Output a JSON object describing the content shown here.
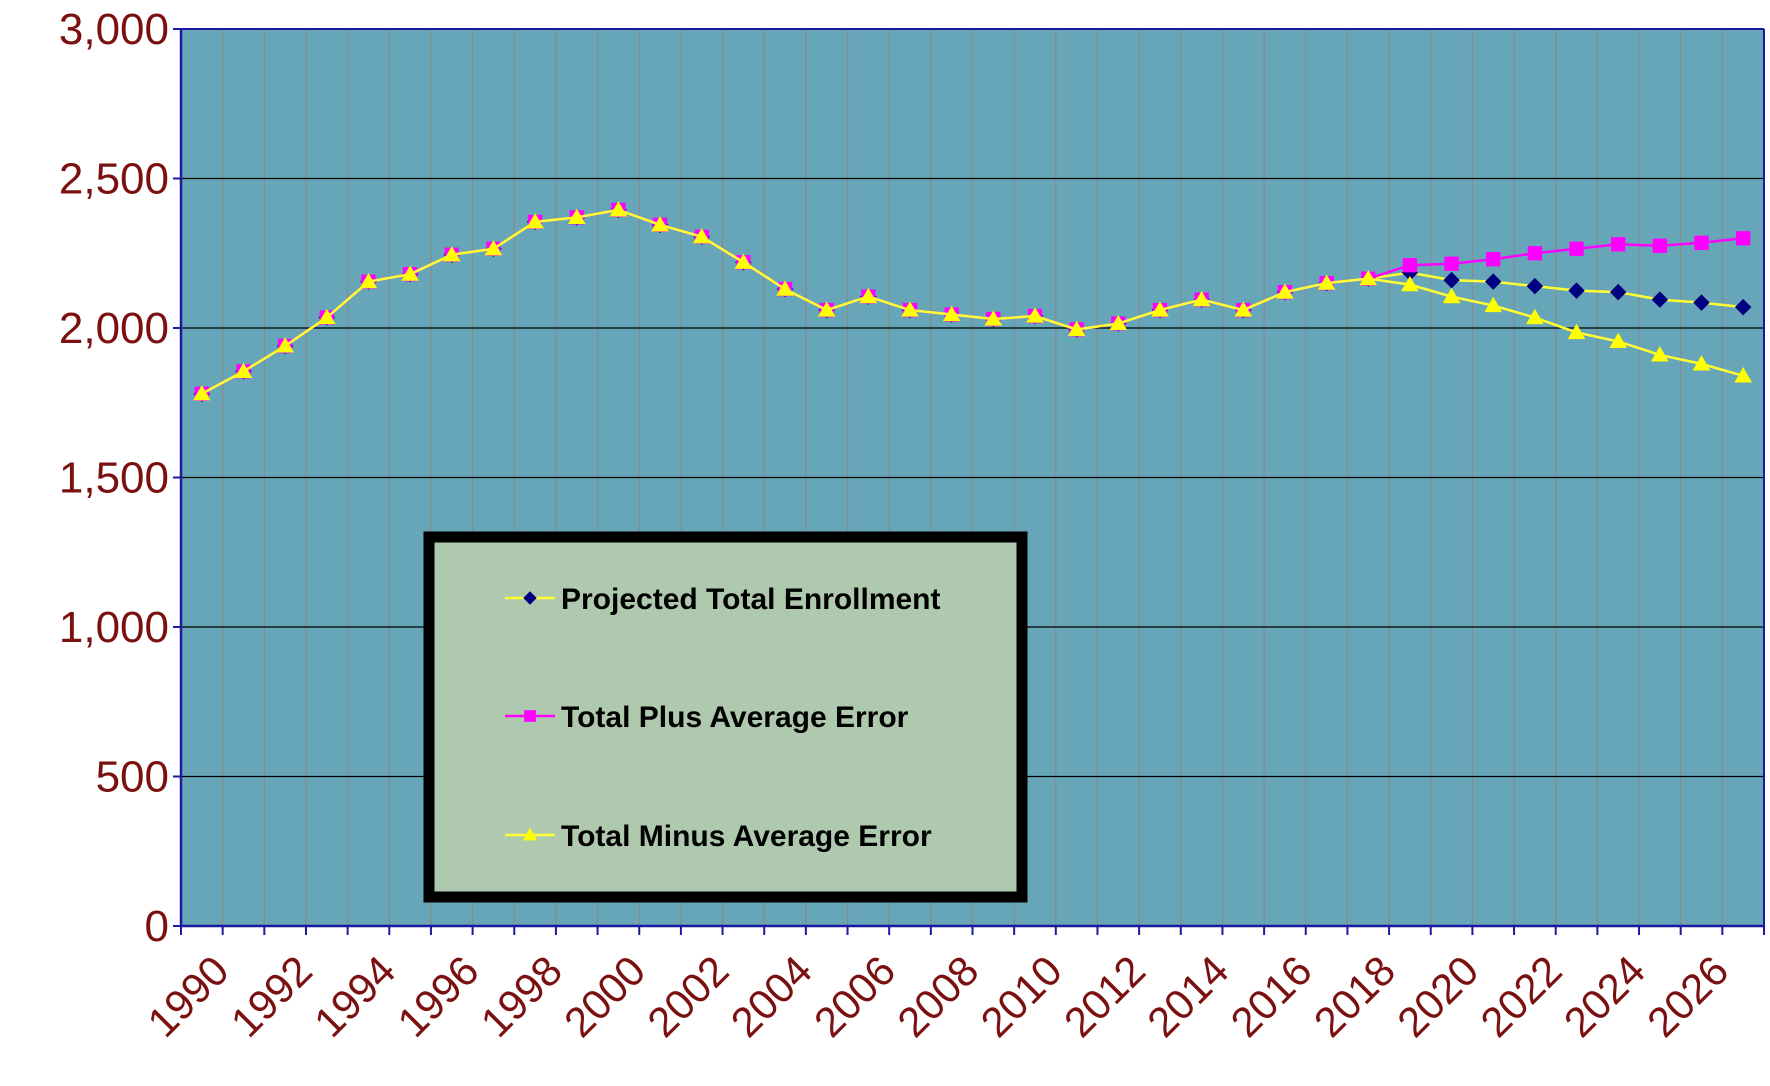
{
  "chart_data": {
    "type": "line",
    "categories": [
      "1990",
      null,
      "1992",
      null,
      "1994",
      null,
      "1996",
      null,
      "1998",
      null,
      "2000",
      null,
      "2002",
      null,
      "2004",
      null,
      "2006",
      null,
      "2008",
      null,
      "2010",
      null,
      "2012",
      null,
      "2014",
      null,
      "2016",
      null,
      "2018",
      null,
      "2020",
      null,
      "2022",
      null,
      "2024",
      null,
      "2026",
      null
    ],
    "series": [
      {
        "name": "Projected Total Enrollment",
        "color": "#000080",
        "line_color": "#ffff33",
        "marker": "diamond",
        "values": [
          1780,
          1855,
          1940,
          2035,
          2155,
          2180,
          2245,
          2265,
          2355,
          2370,
          2395,
          2345,
          2305,
          2220,
          2130,
          2060,
          2105,
          2060,
          2045,
          2030,
          2040,
          1995,
          2015,
          2060,
          2095,
          2060,
          2120,
          2150,
          2165,
          2185,
          2160,
          2155,
          2140,
          2125,
          2120,
          2095,
          2085,
          2070
        ]
      },
      {
        "name": "Total Plus Average Error",
        "color": "#ff00ff",
        "line_color": "#ff00ff",
        "marker": "square",
        "values": [
          1780,
          1855,
          1940,
          2035,
          2155,
          2180,
          2245,
          2265,
          2355,
          2370,
          2395,
          2345,
          2305,
          2220,
          2130,
          2060,
          2105,
          2060,
          2045,
          2030,
          2040,
          1995,
          2015,
          2060,
          2095,
          2060,
          2120,
          2150,
          2165,
          2210,
          2215,
          2230,
          2250,
          2265,
          2280,
          2275,
          2285,
          2300
        ]
      },
      {
        "name": "Total Minus Average Error",
        "color": "#ffff00",
        "line_color": "#ffff33",
        "marker": "triangle",
        "values": [
          1780,
          1855,
          1940,
          2035,
          2155,
          2180,
          2245,
          2265,
          2355,
          2370,
          2395,
          2345,
          2305,
          2220,
          2130,
          2060,
          2105,
          2060,
          2045,
          2030,
          2040,
          1995,
          2015,
          2060,
          2095,
          2060,
          2120,
          2150,
          2165,
          2145,
          2105,
          2075,
          2035,
          1985,
          1955,
          1910,
          1880,
          1840
        ]
      }
    ],
    "ylim": [
      0,
      3000
    ],
    "yticks": [
      0,
      500,
      {
        "value": 1000,
        "label": "1,000"
      },
      {
        "value": 1500,
        "label": "1,500"
      },
      {
        "value": 2000,
        "label": "2,000"
      },
      {
        "value": 2500,
        "label": "2,500"
      },
      {
        "value": 3000,
        "label": "3,000"
      }
    ],
    "grid": true,
    "plot_background": "#66a6b8",
    "legend_background": "#afc9ae"
  }
}
